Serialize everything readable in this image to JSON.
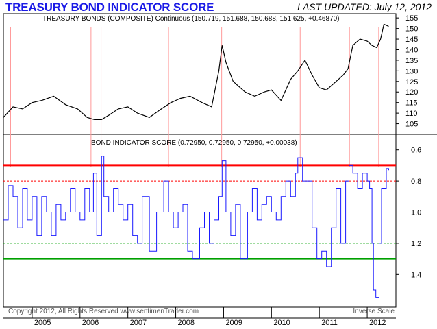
{
  "header": {
    "title": "TREASURY BOND INDICATOR SCORE",
    "last_updated": "LAST UPDATED:  July 12, 2012"
  },
  "footer": {
    "copyright": "Copyright 2012, All Rights Reserved  www.sentimenTrader.com",
    "scale_note": "Inverse Scale"
  },
  "colors": {
    "price": "#000000",
    "score": "#1a1aff",
    "red_line": "#ff0000",
    "green_line": "#00a000",
    "marker": "#ff9999",
    "title": "#1a1ae6"
  },
  "chart_data": [
    {
      "type": "line",
      "title": "TREASURY BONDS (COMPOSITE) Continuous (150.719, 151.688, 150.688, 151.625, +0.46870)",
      "ylim": [
        100,
        157
      ],
      "yticks": [
        105,
        110,
        115,
        120,
        125,
        130,
        135,
        140,
        145,
        150,
        155
      ],
      "x": [
        2004.4,
        2004.6,
        2004.8,
        2005.0,
        2005.2,
        2005.45,
        2005.7,
        2005.95,
        2006.15,
        2006.3,
        2006.45,
        2006.6,
        2006.8,
        2007.0,
        2007.2,
        2007.45,
        2007.7,
        2007.9,
        2008.1,
        2008.3,
        2008.55,
        2008.75,
        2008.9,
        2008.97,
        2009.05,
        2009.2,
        2009.45,
        2009.65,
        2009.85,
        2010.0,
        2010.2,
        2010.4,
        2010.55,
        2010.7,
        2010.85,
        2011.0,
        2011.15,
        2011.35,
        2011.5,
        2011.6,
        2011.7,
        2011.85,
        2012.0,
        2012.1,
        2012.2,
        2012.28,
        2012.35,
        2012.45
      ],
      "series": [
        {
          "values": [
            108,
            113,
            112,
            115,
            116,
            118,
            114,
            112,
            108,
            107,
            107,
            109,
            112,
            113,
            110,
            108,
            112,
            115,
            117,
            118,
            115,
            113,
            130,
            142,
            134,
            125,
            120,
            118,
            120,
            121,
            116,
            126,
            130,
            135,
            128,
            122,
            121,
            125,
            128,
            131,
            142,
            145,
            144,
            142,
            141,
            145,
            152,
            151
          ]
        }
      ]
    },
    {
      "type": "line",
      "title": "BOND INDICATOR SCORE (0.72950, 0.72950, 0.72950, +0.00038)",
      "ylim": [
        1.61,
        0.5
      ],
      "yticks": [
        0.6,
        0.8,
        1.0,
        1.2,
        1.4
      ],
      "xlabels": [
        "2005",
        "2006",
        "2007",
        "2008",
        "2009",
        "2010",
        "2011",
        "2012"
      ],
      "xlim": [
        2004.4,
        2012.6
      ],
      "scale": "inverse",
      "reference_lines": [
        0.7,
        0.8,
        1.2,
        1.3
      ],
      "x": [
        2004.4,
        2004.5,
        2004.6,
        2004.7,
        2004.8,
        2004.9,
        2005.0,
        2005.1,
        2005.2,
        2005.3,
        2005.4,
        2005.5,
        2005.6,
        2005.7,
        2005.8,
        2005.9,
        2006.0,
        2006.1,
        2006.2,
        2006.28,
        2006.35,
        2006.45,
        2006.5,
        2006.6,
        2006.7,
        2006.8,
        2006.9,
        2007.0,
        2007.1,
        2007.2,
        2007.3,
        2007.45,
        2007.6,
        2007.75,
        2007.85,
        2007.95,
        2008.05,
        2008.15,
        2008.25,
        2008.35,
        2008.5,
        2008.6,
        2008.7,
        2008.8,
        2008.9,
        2008.97,
        2009.05,
        2009.15,
        2009.25,
        2009.35,
        2009.5,
        2009.6,
        2009.7,
        2009.8,
        2009.9,
        2010.0,
        2010.1,
        2010.2,
        2010.3,
        2010.4,
        2010.5,
        2010.55,
        2010.65,
        2010.75,
        2010.85,
        2010.95,
        2011.05,
        2011.15,
        2011.25,
        2011.35,
        2011.45,
        2011.55,
        2011.62,
        2011.7,
        2011.8,
        2011.9,
        2012.0,
        2012.05,
        2012.1,
        2012.13,
        2012.18,
        2012.25,
        2012.3,
        2012.4,
        2012.45
      ],
      "series": [
        {
          "values": [
            1.05,
            0.83,
            0.9,
            1.1,
            0.85,
            1.05,
            0.9,
            1.15,
            0.9,
            1.0,
            1.15,
            0.95,
            1.05,
            1.0,
            0.85,
            1.0,
            1.05,
            0.85,
            1.0,
            0.75,
            1.15,
            0.64,
            0.9,
            1.0,
            0.85,
            0.95,
            1.05,
            0.95,
            1.15,
            1.2,
            0.9,
            1.25,
            1.0,
            0.8,
            1.0,
            1.1,
            1.0,
            0.95,
            1.25,
            1.3,
            1.1,
            1.0,
            1.2,
            1.05,
            0.9,
            0.67,
            1.0,
            1.15,
            0.95,
            1.3,
            1.0,
            0.85,
            1.05,
            0.95,
            0.9,
            1.0,
            1.05,
            0.9,
            0.8,
            0.9,
            0.75,
            0.65,
            0.8,
            0.8,
            1.1,
            1.3,
            1.25,
            1.35,
            1.1,
            0.85,
            1.2,
            0.8,
            0.7,
            0.75,
            0.85,
            0.75,
            0.8,
            0.85,
            1.2,
            1.5,
            1.55,
            1.2,
            0.85,
            0.72,
            0.73
          ]
        }
      ]
    }
  ],
  "marker_x": [
    2004.55,
    2006.23,
    2006.44,
    2007.85,
    2008.96,
    2010.6,
    2011.63,
    2012.24
  ]
}
